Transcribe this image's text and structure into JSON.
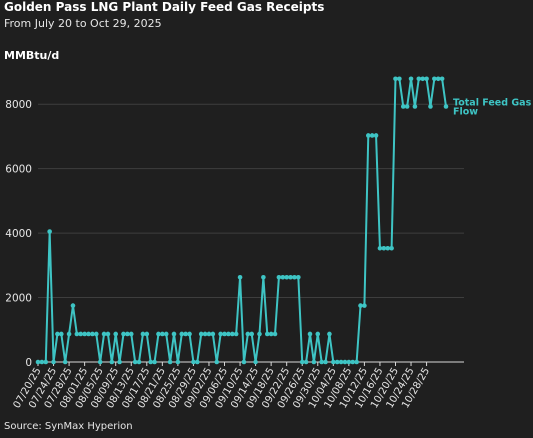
{
  "header": {
    "title": "Golden Pass LNG Plant Daily Feed Gas Receipts",
    "subtitle": "From July 20 to Oct 29, 2025",
    "unit": "MMBtu/d"
  },
  "footer": {
    "source": "Source: SynMax Hyperion"
  },
  "colors": {
    "background": "#1f1f1f",
    "series": "#3ec4c4",
    "grid": "#3e3e3e",
    "axis": "#d9d9d9",
    "text": "#e6e6e6"
  },
  "chart_data": {
    "type": "line",
    "title": "Golden Pass LNG Plant Daily Feed Gas Receipts",
    "subtitle": "From July 20 to Oct 29, 2025",
    "ylabel": "MMBtu/d",
    "xlabel": "",
    "ylim": [
      0,
      9000
    ],
    "yticks": [
      0,
      2000,
      4000,
      6000,
      8000
    ],
    "grid": "horizontal",
    "legend": "end-of-line label",
    "x_tick_labels": [
      "07/20/25",
      "07/24/25",
      "07/28/25",
      "08/01/25",
      "08/05/25",
      "08/09/25",
      "08/13/25",
      "08/17/25",
      "08/21/25",
      "08/25/25",
      "08/29/25",
      "09/02/25",
      "09/06/25",
      "09/10/25",
      "09/14/25",
      "09/18/25",
      "09/22/25",
      "09/26/25",
      "09/30/25",
      "10/04/25",
      "10/08/25",
      "10/12/25",
      "10/16/25",
      "10/20/25",
      "10/24/25",
      "10/28/25"
    ],
    "series": [
      {
        "name": "Total Feed Gas Flow",
        "x_start": "2025-07-20",
        "x_end": "2025-10-29",
        "values": [
          0,
          0,
          0,
          4050,
          0,
          870,
          870,
          0,
          870,
          1750,
          870,
          870,
          870,
          870,
          870,
          870,
          0,
          870,
          870,
          0,
          870,
          0,
          870,
          870,
          870,
          0,
          0,
          870,
          870,
          0,
          0,
          870,
          870,
          870,
          0,
          870,
          0,
          870,
          870,
          870,
          0,
          0,
          870,
          870,
          870,
          870,
          0,
          870,
          870,
          870,
          870,
          870,
          2630,
          0,
          870,
          870,
          0,
          870,
          2630,
          870,
          870,
          870,
          2630,
          2630,
          2630,
          2630,
          2630,
          2630,
          0,
          0,
          870,
          0,
          870,
          0,
          0,
          870,
          0,
          0,
          0,
          0,
          0,
          0,
          0,
          1750,
          1750,
          7030,
          7030,
          7030,
          3530,
          3530,
          3530,
          3530,
          8790,
          8790,
          7930,
          7930,
          8790,
          7930,
          8790,
          8790,
          8790,
          7930,
          8790,
          8790,
          8790,
          7930
        ]
      }
    ]
  }
}
